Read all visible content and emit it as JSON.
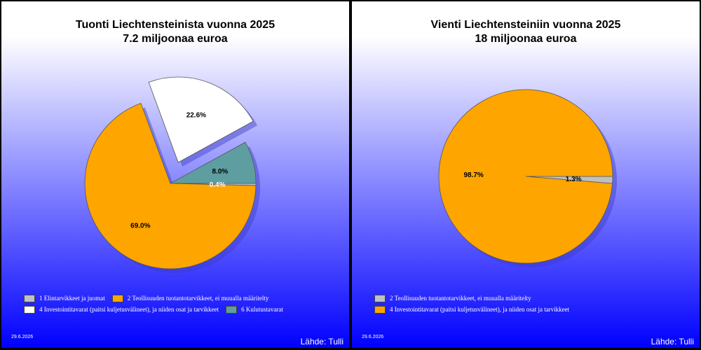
{
  "chart_data": [
    {
      "type": "pie",
      "title": "Tuonti Liechtensteinista vuonna 2025",
      "subtitle": "7.2 miljoonaa euroa",
      "slices": [
        {
          "label": "1 Elintarvikkeet ja juomat",
          "value": 0.4,
          "value_label": "0.4%",
          "color": "#c0c0c0"
        },
        {
          "label": "2 Teollisuuden tuotantotarvikkeet, ei muualla määritelty",
          "value": 69.0,
          "value_label": "69.0%",
          "color": "#ffa500"
        },
        {
          "label": "4 Investointitavarat (paitsi kuljetusvälineet), ja niiden osat ja tarvikkeet",
          "value": 22.6,
          "value_label": "22.6%",
          "color": "#ffffff"
        },
        {
          "label": "6 Kulutustavarat",
          "value": 8.0,
          "value_label": "8.0%",
          "color": "#5f9ea0"
        }
      ],
      "legend_position": "bottom",
      "date": "29.6.2026",
      "source": "Lähde: Tulli"
    },
    {
      "type": "pie",
      "title": "Vienti Liechtensteiniin vuonna 2025",
      "subtitle": "18 miljoonaa euroa",
      "slices": [
        {
          "label": "2 Teollisuuden tuotantotarvikkeet, ei muualla määritelty",
          "value": 1.3,
          "value_label": "1.3%",
          "color": "#c0c0c0"
        },
        {
          "label": "4 Investointitavarat (paitsi kuljetusvälineet), ja niiden osat ja tarvikkeet",
          "value": 98.7,
          "value_label": "98.7%",
          "color": "#ffa500"
        }
      ],
      "legend_position": "bottom",
      "date": "29.6.2026",
      "source": "Lähde: Tulli"
    }
  ]
}
